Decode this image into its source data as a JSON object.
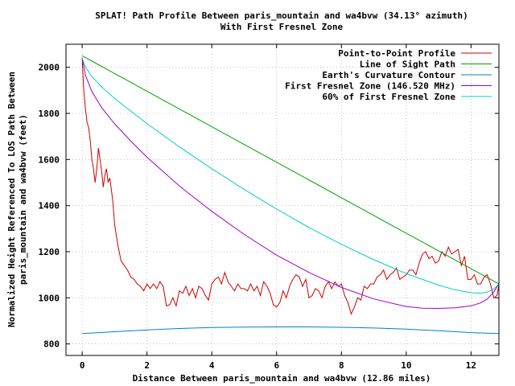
{
  "chart_data": {
    "type": "line",
    "title": "SPLAT! Path Profile Between paris_mountain and wa4bvw (34.13° azimuth)",
    "subtitle": "With First Fresnel Zone",
    "xlabel": "Distance Between paris_mountain and wa4bvw (12.86 miles)",
    "ylabel_line1": "Normalized Height Referenced To LOS Path Between",
    "ylabel_line2": "paris_mountain and wa4bvw (feet)",
    "xlim": [
      -0.5,
      12.86
    ],
    "ylim": [
      750,
      2100
    ],
    "x_ticks": [
      0,
      2,
      4,
      6,
      8,
      10,
      12
    ],
    "y_ticks": [
      800,
      1000,
      1200,
      1400,
      1600,
      1800,
      2000
    ],
    "grid": true,
    "legend_position": "top-right",
    "series": [
      {
        "name": "Point-to-Point Profile",
        "color": "#cc0000",
        "x": [
          0.0,
          0.05,
          0.1,
          0.15,
          0.2,
          0.25,
          0.3,
          0.35,
          0.4,
          0.45,
          0.5,
          0.55,
          0.6,
          0.65,
          0.7,
          0.75,
          0.8,
          0.85,
          0.9,
          0.95,
          1.0,
          1.1,
          1.2,
          1.3,
          1.4,
          1.5,
          1.6,
          1.7,
          1.8,
          1.9,
          2.0,
          2.1,
          2.2,
          2.3,
          2.4,
          2.5,
          2.6,
          2.7,
          2.8,
          2.9,
          3.0,
          3.1,
          3.2,
          3.3,
          3.4,
          3.5,
          3.6,
          3.7,
          3.8,
          3.9,
          4.0,
          4.1,
          4.2,
          4.3,
          4.4,
          4.5,
          4.6,
          4.7,
          4.8,
          4.9,
          5.0,
          5.1,
          5.2,
          5.3,
          5.4,
          5.5,
          5.6,
          5.7,
          5.8,
          5.9,
          6.0,
          6.1,
          6.2,
          6.3,
          6.4,
          6.5,
          6.6,
          6.7,
          6.8,
          6.9,
          7.0,
          7.1,
          7.2,
          7.3,
          7.4,
          7.5,
          7.6,
          7.7,
          7.8,
          7.9,
          8.0,
          8.1,
          8.2,
          8.3,
          8.4,
          8.5,
          8.6,
          8.7,
          8.8,
          8.9,
          9.0,
          9.1,
          9.2,
          9.3,
          9.4,
          9.5,
          9.6,
          9.7,
          9.8,
          9.9,
          10.0,
          10.1,
          10.2,
          10.3,
          10.4,
          10.5,
          10.6,
          10.7,
          10.8,
          10.9,
          11.0,
          11.1,
          11.2,
          11.3,
          11.4,
          11.5,
          11.6,
          11.7,
          11.8,
          11.9,
          12.0,
          12.1,
          12.2,
          12.3,
          12.4,
          12.5,
          12.6,
          12.7,
          12.8,
          12.86
        ],
        "y": [
          2040,
          1900,
          1820,
          1760,
          1740,
          1680,
          1600,
          1560,
          1500,
          1560,
          1650,
          1600,
          1550,
          1480,
          1530,
          1560,
          1500,
          1520,
          1470,
          1410,
          1320,
          1230,
          1160,
          1140,
          1120,
          1090,
          1080,
          1060,
          1050,
          1030,
          1060,
          1040,
          1060,
          1040,
          1070,
          1050,
          965,
          970,
          1000,
          965,
          1030,
          1020,
          1050,
          1010,
          1040,
          1000,
          1050,
          1040,
          1010,
          990,
          1060,
          1080,
          1090,
          1060,
          1110,
          1070,
          1050,
          1030,
          1060,
          1040,
          1040,
          1030,
          1060,
          1030,
          1050,
          1010,
          1070,
          1050,
          1020,
          970,
          960,
          980,
          1030,
          1000,
          1050,
          1080,
          1100,
          1090,
          1050,
          1080,
          1000,
          1010,
          1040,
          1030,
          1000,
          1050,
          1070,
          1040,
          1070,
          1050,
          1060,
          1010,
          980,
          930,
          960,
          1000,
          990,
          1050,
          1040,
          1060,
          1060,
          1090,
          1100,
          1120,
          1080,
          1100,
          1110,
          1130,
          1080,
          1090,
          1100,
          1120,
          1120,
          1100,
          1150,
          1190,
          1200,
          1170,
          1180,
          1150,
          1160,
          1200,
          1180,
          1220,
          1190,
          1200,
          1210,
          1140,
          1180,
          1080,
          1080,
          1100,
          1060,
          1060,
          1090,
          1100,
          1060,
          1000,
          1010,
          1055
        ]
      },
      {
        "name": "Line of Sight Path",
        "color": "#00a000",
        "x": [
          0.0,
          12.86
        ],
        "y": [
          2050,
          1060
        ]
      },
      {
        "name": "Earth's Curvature Contour",
        "color": "#0080cc",
        "x": [
          0.0,
          1.0,
          2.0,
          3.0,
          4.0,
          5.0,
          6.0,
          6.43,
          7.0,
          8.0,
          9.0,
          10.0,
          11.0,
          12.0,
          12.86
        ],
        "y": [
          845,
          853,
          861,
          867,
          871,
          873,
          874,
          874,
          874,
          872,
          869,
          864,
          857,
          849,
          845
        ]
      },
      {
        "name": "First Fresnel Zone (146.520 MHz)",
        "color": "#a000cc",
        "x": [
          0.0,
          0.1,
          0.3,
          0.6,
          1.0,
          1.5,
          2.0,
          3.0,
          4.0,
          5.0,
          6.0,
          7.0,
          8.0,
          9.0,
          10.0,
          10.5,
          11.0,
          11.5,
          12.0,
          12.3,
          12.5,
          12.7,
          12.86
        ],
        "y": [
          2040,
          1965,
          1895,
          1825,
          1755,
          1680,
          1610,
          1485,
          1375,
          1275,
          1185,
          1110,
          1045,
          995,
          962,
          955,
          954,
          957,
          965,
          978,
          995,
          1025,
          1060
        ]
      },
      {
        "name": "60% of First Fresnel Zone",
        "color": "#00cccc",
        "x": [
          0.0,
          0.1,
          0.3,
          0.6,
          1.0,
          1.5,
          2.0,
          3.0,
          4.0,
          5.0,
          6.0,
          7.0,
          8.0,
          9.0,
          10.0,
          11.0,
          11.5,
          12.0,
          12.3,
          12.5,
          12.7,
          12.86
        ],
        "y": [
          2040,
          2000,
          1960,
          1915,
          1865,
          1810,
          1755,
          1655,
          1560,
          1470,
          1385,
          1305,
          1232,
          1165,
          1105,
          1055,
          1035,
          1022,
          1020,
          1025,
          1038,
          1060
        ]
      }
    ]
  }
}
